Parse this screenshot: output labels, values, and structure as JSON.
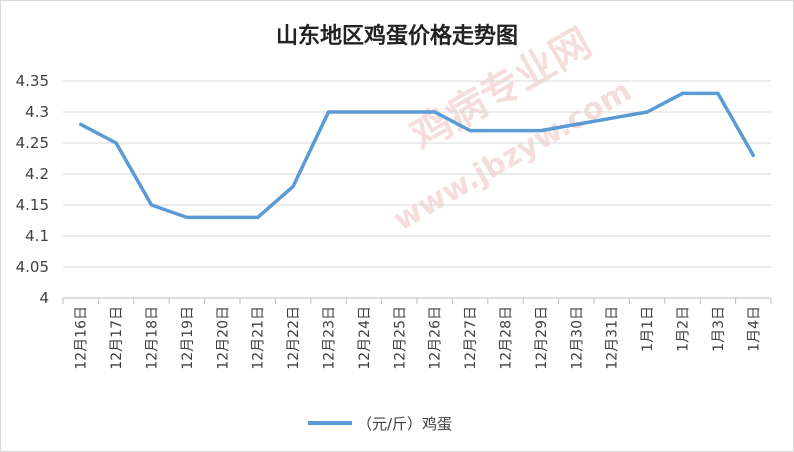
{
  "chart_data": {
    "type": "line",
    "title": "山东地区鸡蛋价格走势图",
    "categories": [
      "12月16日",
      "12月17日",
      "12月18日",
      "12月19日",
      "12月20日",
      "12月21日",
      "12月22日",
      "12月23日",
      "12月24日",
      "12月25日",
      "12月26日",
      "12月27日",
      "12月28日",
      "12月29日",
      "12月30日",
      "12月31日",
      "1月1日",
      "1月2日",
      "1月3日",
      "1月4日"
    ],
    "series": [
      {
        "name": "（元/斤）鸡蛋",
        "color": "#5b9bd5",
        "values": [
          4.28,
          4.25,
          4.15,
          4.13,
          4.13,
          4.13,
          4.18,
          4.3,
          4.3,
          4.3,
          4.3,
          4.27,
          4.27,
          4.27,
          4.28,
          4.29,
          4.3,
          4.33,
          4.33,
          4.23
        ]
      }
    ],
    "yticks": [
      "4",
      "4.05",
      "4.1",
      "4.15",
      "4.2",
      "4.25",
      "4.3",
      "4.35"
    ],
    "ylim": [
      4,
      4.35
    ],
    "grid": true,
    "legend": "bottom",
    "xlabel": "",
    "ylabel": ""
  },
  "watermark": {
    "brand": "鸡病专业网",
    "url": "www.jbzyw.com"
  }
}
